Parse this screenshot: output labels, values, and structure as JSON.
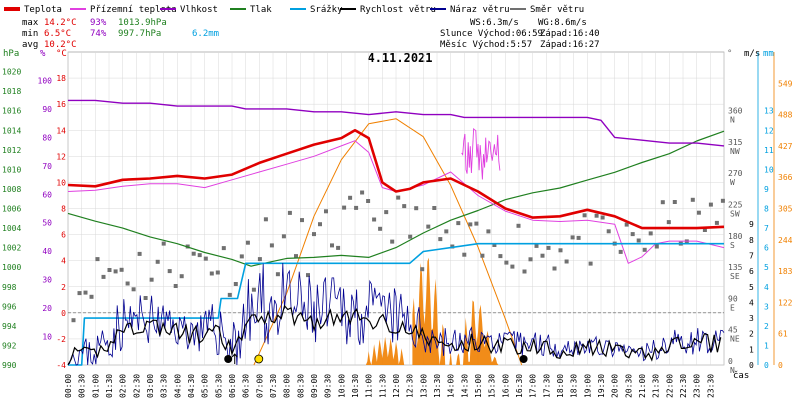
{
  "chart_data": {
    "type": "line",
    "title": "4.11.2021",
    "legend": [
      {
        "name": "Teplota",
        "color": "#e00000"
      },
      {
        "name": "Přízemní teplota",
        "color": "#e040e0"
      },
      {
        "name": "Vlhkost",
        "color": "#9000c0"
      },
      {
        "name": "Tlak",
        "color": "#208020"
      },
      {
        "name": "Srážky",
        "color": "#00a0e0"
      },
      {
        "name": "Rychlost větru",
        "color": "#000000"
      },
      {
        "name": "Náraz větru",
        "color": "#000090"
      },
      {
        "name": "Směr větru",
        "color": "#707070"
      }
    ],
    "stats": {
      "max_label": "max",
      "max_temp": "14.2°C",
      "max_hum": "93%",
      "max_press": "1013.9hPa",
      "max_rain": "6.2mm",
      "min_label": "min",
      "min_temp": "6.5°C",
      "min_hum": "74%",
      "min_press": "997.7hPa",
      "avg_label": "avg",
      "avg_temp": "10.2°C"
    },
    "info": {
      "ws": "WS:6.3m/s",
      "wg": "WG:8.6m/s",
      "sun": "Slunce Východ:06:59",
      "sun_set": "Západ:16:40",
      "moon": "Měsíc Východ:5:57",
      "moon_set": "Západ:16:27"
    },
    "axes": {
      "hpa_label": "hPa",
      "pct_label": "%",
      "temp_label": "°C",
      "deg_label": "°",
      "ms_label": "m/s",
      "mm_label": "mm",
      "x_label": "čas",
      "hpa_ticks": [
        "990",
        "992",
        "994",
        "996",
        "998",
        "1000",
        "1002",
        "1004",
        "1006",
        "1008",
        "1010",
        "1012",
        "1014",
        "1016",
        "1018",
        "1020"
      ],
      "pct_ticks": [
        "10",
        "20",
        "30",
        "40",
        "50",
        "60",
        "70",
        "80",
        "90",
        "100"
      ],
      "temp_ticks": [
        "-4",
        "-2",
        "0",
        "2",
        "4",
        "6",
        "8",
        "10",
        "12",
        "14",
        "16",
        "18"
      ],
      "dir_ticks": [
        {
          "deg": "0",
          "dir": "N"
        },
        {
          "deg": "45",
          "dir": "NE"
        },
        {
          "deg": "90",
          "dir": "E"
        },
        {
          "deg": "135",
          "dir": "SE"
        },
        {
          "deg": "180",
          "dir": "S"
        },
        {
          "deg": "225",
          "dir": "SW"
        },
        {
          "deg": "270",
          "dir": "W"
        },
        {
          "deg": "315",
          "dir": "NW"
        },
        {
          "deg": "360",
          "dir": "N"
        }
      ],
      "ms_ticks": [
        "0",
        "1",
        "2",
        "3",
        "4",
        "5",
        "6",
        "7",
        "8",
        "9"
      ],
      "mm_ticks": [
        "0",
        "1",
        "2",
        "3",
        "4",
        "5",
        "6",
        "7",
        "8",
        "9",
        "10",
        "11",
        "12",
        "13"
      ],
      "solar_ticks": [
        "0",
        "61",
        "122",
        "183",
        "244",
        "305",
        "366",
        "427",
        "488",
        "549"
      ],
      "x_ticks": [
        "00:00",
        "00:30",
        "01:00",
        "01:30",
        "02:00",
        "02:30",
        "03:00",
        "03:30",
        "04:00",
        "04:30",
        "05:00",
        "05:30",
        "06:00",
        "06:30",
        "07:00",
        "07:30",
        "08:00",
        "08:30",
        "09:00",
        "09:30",
        "10:00",
        "10:30",
        "11:00",
        "11:30",
        "12:00",
        "12:30",
        "13:00",
        "13:30",
        "14:00",
        "14:30",
        "15:00",
        "15:30",
        "16:00",
        "16:30",
        "17:00",
        "17:30",
        "18:00",
        "18:30",
        "19:00",
        "19:30",
        "20:00",
        "20:30",
        "21:00",
        "21:30",
        "22:00",
        "22:30",
        "23:00",
        "23:30"
      ]
    },
    "series": {
      "temperature": {
        "x": [
          0,
          1,
          2,
          3,
          4,
          5,
          6,
          7,
          8,
          9,
          10,
          10.5,
          11,
          11.5,
          12,
          12.5,
          13,
          14,
          15,
          16,
          17,
          18,
          19,
          20,
          21,
          22,
          23,
          24
        ],
        "y": [
          9.8,
          9.7,
          10.2,
          10.3,
          10.5,
          10.3,
          10.6,
          11.5,
          12.2,
          12.9,
          13.4,
          14.0,
          13.4,
          10.0,
          9.3,
          9.5,
          10.0,
          10.3,
          9.3,
          8.0,
          7.3,
          7.4,
          7.9,
          7.4,
          6.5,
          6.5,
          6.5,
          6.6
        ]
      },
      "ground_temperature": {
        "x": [
          0,
          1,
          2,
          3,
          4,
          5,
          6,
          7,
          8,
          9,
          10,
          10.5,
          11,
          11.5,
          12,
          13,
          14,
          15,
          16,
          17,
          18,
          19,
          20,
          20.5,
          21,
          21.5,
          22,
          23,
          24
        ],
        "y": [
          9.3,
          9.4,
          9.7,
          9.9,
          9.9,
          9.6,
          10.2,
          10.8,
          11.4,
          12.0,
          12.8,
          13.2,
          12.3,
          9.6,
          9.3,
          9.8,
          10.8,
          9.0,
          7.8,
          7.1,
          7.0,
          7.1,
          6.8,
          3.8,
          4.3,
          5.3,
          5.5,
          5.5,
          5.0
        ]
      },
      "humidity": {
        "x": [
          0,
          1,
          2,
          3,
          4,
          5,
          6,
          6.5,
          7,
          8,
          9,
          10,
          11,
          12,
          13,
          14,
          14.5,
          15,
          16,
          17,
          18,
          19,
          19.5,
          20,
          21,
          22,
          23,
          24
        ],
        "y": [
          93,
          93,
          92,
          92,
          91,
          91,
          91,
          90,
          90,
          90,
          89,
          89,
          88,
          89,
          88,
          88,
          87,
          87,
          87,
          87,
          87,
          87,
          86,
          80,
          79,
          78,
          78,
          77
        ]
      },
      "pressure": {
        "x": [
          0,
          1,
          2,
          3,
          4,
          5,
          6,
          6.7,
          7,
          8,
          9,
          10,
          11,
          12,
          13,
          14,
          15,
          16,
          17,
          18,
          19,
          20,
          21,
          22,
          23,
          24
        ],
        "y": [
          1005.5,
          1004.7,
          1004.0,
          1003.1,
          1002.4,
          1001.5,
          1000.8,
          1000.1,
          1000.3,
          1000.9,
          1001.0,
          1001.2,
          1001.0,
          1002.0,
          1003.5,
          1004.8,
          1005.8,
          1006.9,
          1007.6,
          1008.1,
          1008.9,
          1009.7,
          1010.7,
          1011.6,
          1012.9,
          1013.9
        ]
      },
      "rain": {
        "x": [
          0,
          0.5,
          0.6,
          5.5,
          5.6,
          6.2,
          6.5,
          12.5,
          13.0,
          15.0,
          24.0
        ],
        "y": [
          0,
          0,
          2.4,
          2.4,
          3.4,
          3.4,
          5.2,
          5.2,
          5.8,
          6.2,
          6.2
        ]
      },
      "solar": {
        "x": [
          6.8,
          8.0,
          9.0,
          10.0,
          11.0,
          12.0,
          13.0,
          14.0,
          15.0,
          16.0,
          16.6
        ],
        "y": [
          0,
          140,
          290,
          400,
          470,
          480,
          445,
          350,
          230,
          90,
          0
        ]
      },
      "wind_speed": {
        "x": [
          0,
          1,
          1.5,
          2,
          3,
          4,
          5,
          5.5,
          6,
          6.5,
          7,
          8,
          9,
          10,
          11,
          12,
          13,
          14,
          15,
          16,
          17,
          18,
          19,
          20,
          21,
          22,
          23,
          24
        ],
        "y": [
          0.5,
          0.6,
          1.5,
          2.3,
          2.6,
          2.1,
          1.8,
          2.0,
          0.8,
          2.3,
          3.1,
          3.3,
          2.8,
          3.1,
          2.9,
          2.6,
          1.8,
          1.1,
          1.5,
          1.2,
          1.3,
          1.0,
          1.1,
          0.9,
          0.5,
          1.3,
          1.4,
          1.4
        ]
      },
      "gust_amplitude": {
        "x": [
          0,
          1,
          2,
          3,
          4,
          5,
          6,
          7,
          8,
          9,
          10,
          11,
          12,
          13,
          14,
          15,
          16,
          17,
          18,
          19,
          20,
          21,
          22,
          23,
          24
        ],
        "y": [
          0.5,
          1.3,
          1.8,
          1.6,
          1.2,
          1.4,
          2.4,
          2.8,
          2.7,
          2.3,
          2.3,
          2.1,
          2.0,
          1.4,
          1.0,
          0.8,
          0.8,
          0.9,
          0.7,
          0.7,
          0.5,
          0.7,
          0.8,
          0.9,
          0.7
        ]
      },
      "wind_direction": {
        "x": [
          0,
          1,
          2,
          3,
          4,
          5,
          6,
          7,
          8,
          9,
          10,
          11,
          12,
          13,
          14,
          15,
          16,
          17,
          18,
          19,
          20,
          21,
          22,
          23,
          24
        ],
        "y": [
          90,
          130,
          140,
          135,
          150,
          155,
          140,
          165,
          175,
          170,
          200,
          215,
          210,
          185,
          170,
          160,
          180,
          165,
          175,
          180,
          170,
          180,
          200,
          205,
          215
        ],
        "spread": [
          25,
          20,
          35,
          40,
          30,
          25,
          30,
          40,
          35,
          30,
          30,
          25,
          25,
          35,
          40,
          30,
          25,
          35,
          30,
          30,
          25,
          30,
          30,
          25,
          20
        ]
      }
    },
    "sun_markers": {
      "sunrise": 6.98,
      "sunset": 16.67
    }
  }
}
